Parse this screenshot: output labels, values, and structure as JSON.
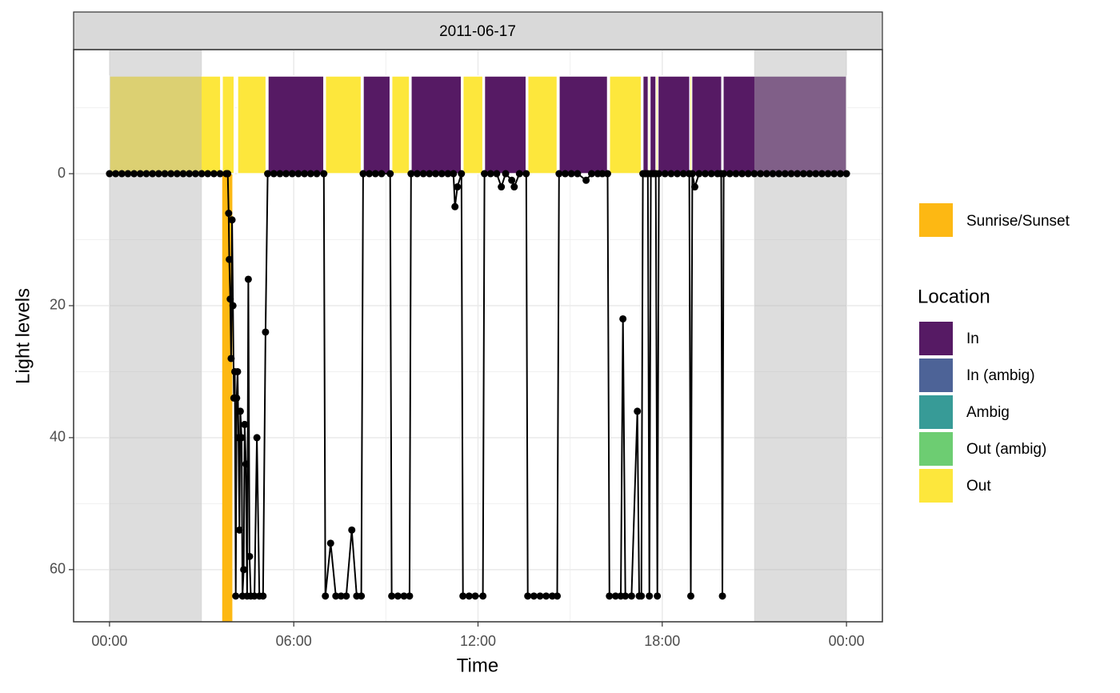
{
  "chart_data": {
    "type": "line",
    "strip": "2011-06-17",
    "x_label": "Time",
    "y_label": "Light levels",
    "xlim": [
      -1.17,
      25.17
    ],
    "xticks": [
      {
        "value": 0,
        "label": "00:00"
      },
      {
        "value": 6,
        "label": "06:00"
      },
      {
        "value": 12,
        "label": "12:00"
      },
      {
        "value": 18,
        "label": "18:00"
      },
      {
        "value": 24,
        "label": "00:00"
      }
    ],
    "ylim": [
      -18.8,
      67.9
    ],
    "y_reversed": true,
    "yticks": [
      0,
      20,
      40,
      60
    ],
    "grid": true,
    "night": [
      [
        0,
        3
      ],
      [
        21,
        24
      ]
    ],
    "sunrise": [
      3.67,
      4.0
    ],
    "sunrise_label": "Sunrise/Sunset",
    "sunrise_color": "#fdb813",
    "legend_title": "Location",
    "locations": [
      {
        "name": "In",
        "color": "#561a64"
      },
      {
        "name": "In (ambig)",
        "color": "#4d6397"
      },
      {
        "name": "Ambig",
        "color": "#379b97"
      },
      {
        "name": "Out (ambig)",
        "color": "#6dcd72"
      },
      {
        "name": "Out",
        "color": "#fde73c"
      }
    ],
    "segments": {
      "start": [
        0,
        3.67,
        4.17,
        5.16,
        7.03,
        8.26,
        9.19,
        9.82,
        11.51,
        12.21,
        13.62,
        14.64,
        16.28,
        17.37,
        17.55,
        17.6,
        17.8,
        17.86,
        18.9,
        18.96,
        19.98
      ],
      "end": [
        3.62,
        4.06,
        5.1,
        6.98,
        8.2,
        9.14,
        9.77,
        11.46,
        12.16,
        13.57,
        14.58,
        16.22,
        17.32,
        17.55,
        17.6,
        17.8,
        17.86,
        18.9,
        18.96,
        19.94,
        24
      ],
      "location": [
        "Out",
        "Out",
        "Out",
        "In",
        "Out",
        "In",
        "Out",
        "In",
        "Out",
        "In",
        "Out",
        "In",
        "Out",
        "In",
        "Out",
        "In",
        "Out",
        "In",
        "Out",
        "In",
        "In"
      ]
    },
    "series": [
      {
        "color": "#000000",
        "x": [
          0,
          0.2,
          0.4,
          0.6,
          0.8,
          1,
          1.2,
          1.4,
          1.6,
          1.8,
          2,
          2.2,
          2.4,
          2.6,
          2.8,
          3,
          3.2,
          3.4,
          3.6,
          3.8,
          3.85,
          3.88,
          3.9,
          3.93,
          3.96,
          3.99,
          4.02,
          4.05,
          4.08,
          4.11,
          4.14,
          4.17,
          4.2,
          4.23,
          4.26,
          4.3,
          4.33,
          4.37,
          4.4,
          4.44,
          4.48,
          4.52,
          4.56,
          4.6,
          4.72,
          4.8,
          4.88,
          5,
          5.08,
          5.15,
          5.35,
          5.55,
          5.75,
          5.95,
          6.15,
          6.35,
          6.55,
          6.75,
          6.98,
          7.03,
          7.2,
          7.37,
          7.54,
          7.71,
          7.89,
          8.05,
          8.2,
          8.26,
          8.46,
          8.66,
          8.86,
          9.14,
          9.19,
          9.39,
          9.59,
          9.77,
          9.82,
          10.02,
          10.22,
          10.42,
          10.62,
          10.82,
          11.02,
          11.2,
          11.25,
          11.33,
          11.46,
          11.51,
          11.71,
          11.91,
          12.16,
          12.21,
          12.41,
          12.61,
          12.76,
          12.9,
          13.1,
          13.18,
          13.35,
          13.57,
          13.62,
          13.82,
          14.02,
          14.22,
          14.42,
          14.58,
          14.64,
          14.84,
          15.04,
          15.24,
          15.52,
          15.7,
          15.9,
          16.05,
          16.22,
          16.28,
          16.48,
          16.65,
          16.72,
          16.8,
          17,
          17.19,
          17.25,
          17.32,
          17.37,
          17.45,
          17.53,
          17.58,
          17.63,
          17.71,
          17.79,
          17.84,
          17.89,
          18.09,
          18.29,
          18.49,
          18.69,
          18.88,
          18.93,
          18.98,
          19.06,
          19.2,
          19.4,
          19.6,
          19.8,
          19.92,
          19.96,
          20,
          20.2,
          20.4,
          20.6,
          20.8,
          21,
          21.2,
          21.4,
          21.6,
          21.8,
          22,
          22.2,
          22.4,
          22.6,
          22.8,
          23,
          23.2,
          23.4,
          23.6,
          23.8,
          24
        ],
        "values": [
          0,
          0,
          0,
          0,
          0,
          0,
          0,
          0,
          0,
          0,
          0,
          0,
          0,
          0,
          0,
          0,
          0,
          0,
          0,
          0,
          0,
          6,
          13,
          19,
          28,
          7,
          20,
          34,
          30,
          64,
          34,
          30,
          40,
          54,
          36,
          40,
          64,
          60,
          38,
          44,
          64,
          16,
          58,
          64,
          64,
          40,
          64,
          64,
          24,
          0,
          0,
          0,
          0,
          0,
          0,
          0,
          0,
          0,
          0,
          64,
          56,
          64,
          64,
          64,
          54,
          64,
          64,
          0,
          0,
          0,
          0,
          0,
          64,
          64,
          64,
          64,
          0,
          0,
          0,
          0,
          0,
          0,
          0,
          0,
          5,
          2,
          0,
          64,
          64,
          64,
          64,
          0,
          0,
          0,
          2,
          0,
          1,
          2,
          0,
          0,
          64,
          64,
          64,
          64,
          64,
          64,
          0,
          0,
          0,
          0,
          1,
          0,
          0,
          0,
          0,
          64,
          64,
          64,
          22,
          64,
          64,
          36,
          64,
          64,
          0,
          0,
          0,
          64,
          0,
          0,
          0,
          64,
          0,
          0,
          0,
          0,
          0,
          0,
          64,
          0,
          2,
          0,
          0,
          0,
          0,
          0,
          64,
          0,
          0,
          0,
          0,
          0,
          0,
          0,
          0,
          0,
          0,
          0,
          0,
          0,
          0,
          0,
          0,
          0,
          0,
          0,
          0,
          0
        ]
      }
    ]
  }
}
